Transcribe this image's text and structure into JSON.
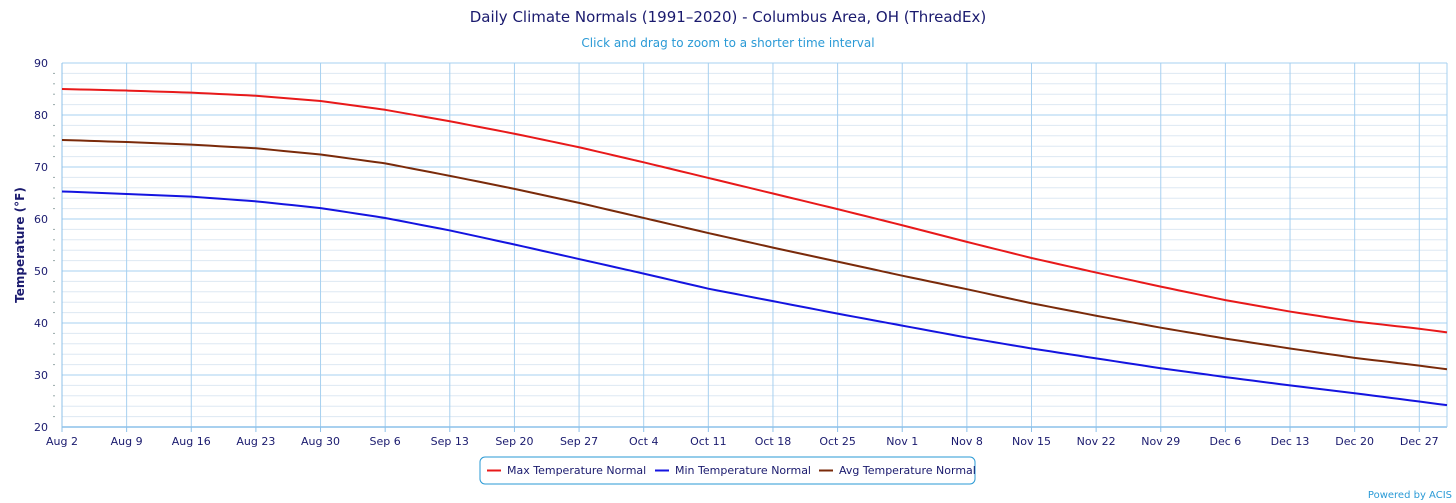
{
  "chart_data": {
    "type": "line",
    "title": "Daily Climate Normals (1991–2020) - Columbus Area, OH (ThreadEx)",
    "subtitle": "Click and drag to zoom to a shorter time interval",
    "ylabel": "Temperature (°F)",
    "xlabel": "",
    "ylim": [
      20,
      90
    ],
    "yticks": [
      20,
      30,
      40,
      50,
      60,
      70,
      80,
      90
    ],
    "x_start_label": "Aug 2",
    "x_days": 150,
    "xtick_labels": [
      "Aug 2",
      "Aug 9",
      "Aug 16",
      "Aug 23",
      "Aug 30",
      "Sep 6",
      "Sep 13",
      "Sep 20",
      "Sep 27",
      "Oct 4",
      "Oct 11",
      "Oct 18",
      "Oct 25",
      "Nov 1",
      "Nov 8",
      "Nov 15",
      "Nov 22",
      "Nov 29",
      "Dec 6",
      "Dec 13",
      "Dec 20",
      "Dec 27"
    ],
    "xtick_days": [
      0,
      7,
      14,
      21,
      28,
      35,
      42,
      49,
      56,
      63,
      70,
      77,
      84,
      91,
      98,
      105,
      112,
      119,
      126,
      133,
      140,
      147
    ],
    "legend_position": "bottom-center",
    "series": [
      {
        "name": "Max Temperature Normal",
        "color": "#e8191a",
        "points": [
          [
            0,
            85.0
          ],
          [
            7,
            84.7
          ],
          [
            14,
            84.3
          ],
          [
            21,
            83.7
          ],
          [
            28,
            82.7
          ],
          [
            35,
            81.0
          ],
          [
            42,
            78.8
          ],
          [
            49,
            76.4
          ],
          [
            56,
            73.8
          ],
          [
            63,
            70.9
          ],
          [
            70,
            67.9
          ],
          [
            77,
            64.9
          ],
          [
            84,
            61.9
          ],
          [
            91,
            58.8
          ],
          [
            98,
            55.6
          ],
          [
            105,
            52.5
          ],
          [
            112,
            49.7
          ],
          [
            119,
            47.0
          ],
          [
            126,
            44.4
          ],
          [
            133,
            42.2
          ],
          [
            140,
            40.3
          ],
          [
            147,
            38.9
          ],
          [
            150,
            38.2
          ]
        ]
      },
      {
        "name": "Min Temperature Normal",
        "color": "#1414e0",
        "points": [
          [
            0,
            65.3
          ],
          [
            7,
            64.8
          ],
          [
            14,
            64.3
          ],
          [
            21,
            63.4
          ],
          [
            28,
            62.1
          ],
          [
            35,
            60.2
          ],
          [
            42,
            57.8
          ],
          [
            49,
            55.1
          ],
          [
            56,
            52.3
          ],
          [
            63,
            49.5
          ],
          [
            70,
            46.6
          ],
          [
            77,
            44.2
          ],
          [
            84,
            41.8
          ],
          [
            91,
            39.5
          ],
          [
            98,
            37.2
          ],
          [
            105,
            35.1
          ],
          [
            112,
            33.2
          ],
          [
            119,
            31.3
          ],
          [
            126,
            29.6
          ],
          [
            133,
            28.0
          ],
          [
            140,
            26.5
          ],
          [
            147,
            24.9
          ],
          [
            150,
            24.2
          ]
        ]
      },
      {
        "name": "Avg Temperature Normal",
        "color": "#7a2a0a",
        "points": [
          [
            0,
            75.2
          ],
          [
            7,
            74.8
          ],
          [
            14,
            74.3
          ],
          [
            21,
            73.6
          ],
          [
            28,
            72.4
          ],
          [
            35,
            70.7
          ],
          [
            42,
            68.3
          ],
          [
            49,
            65.8
          ],
          [
            56,
            63.1
          ],
          [
            63,
            60.2
          ],
          [
            70,
            57.3
          ],
          [
            77,
            54.5
          ],
          [
            84,
            51.8
          ],
          [
            91,
            49.1
          ],
          [
            98,
            46.5
          ],
          [
            105,
            43.8
          ],
          [
            112,
            41.4
          ],
          [
            119,
            39.1
          ],
          [
            126,
            37.0
          ],
          [
            133,
            35.1
          ],
          [
            140,
            33.3
          ],
          [
            147,
            31.8
          ],
          [
            150,
            31.1
          ]
        ]
      }
    ]
  },
  "credit": "Powered by ACIS",
  "colors": {
    "text": "#1a1a6e",
    "accent": "#2a9ad6",
    "major_grid": "#a7d0f0",
    "minor_grid": "#dde8f3",
    "axis": "#8cc1ea"
  }
}
